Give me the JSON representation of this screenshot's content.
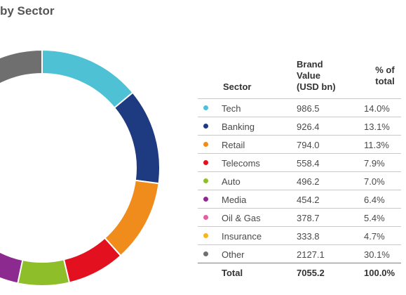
{
  "title": "by Sector",
  "table": {
    "headers": {
      "sector": "Sector",
      "value": [
        "Brand",
        "Value",
        "(USD bn)"
      ],
      "pct": [
        "% of",
        "total"
      ]
    },
    "total": {
      "label": "Total",
      "value": "7055.2",
      "pct": "100.0%"
    }
  },
  "chart_data": {
    "type": "pie",
    "title": "by Sector",
    "categories": [
      "Tech",
      "Banking",
      "Retail",
      "Telecoms",
      "Auto",
      "Media",
      "Oil & Gas",
      "Insurance",
      "Other"
    ],
    "values": [
      986.5,
      926.4,
      794.0,
      558.4,
      496.2,
      454.2,
      378.7,
      333.8,
      2127.1
    ],
    "value_labels": [
      "986.5",
      "926.4",
      "794.0",
      "558.4",
      "496.2",
      "454.2",
      "378.7",
      "333.8",
      "2127.1"
    ],
    "percent_labels": [
      "14.0%",
      "13.1%",
      "11.3%",
      "7.9%",
      "7.0%",
      "6.4%",
      "5.4%",
      "4.7%",
      "30.1%"
    ],
    "colors": [
      "#4ec1d5",
      "#1e3a80",
      "#f08c1c",
      "#e3111f",
      "#8fbe2b",
      "#8c2a8f",
      "#e35fa3",
      "#f5b71d",
      "#6f6f6f"
    ],
    "donut": true,
    "start_angle_deg": 0,
    "direction": "clockwise",
    "legend": "right"
  }
}
